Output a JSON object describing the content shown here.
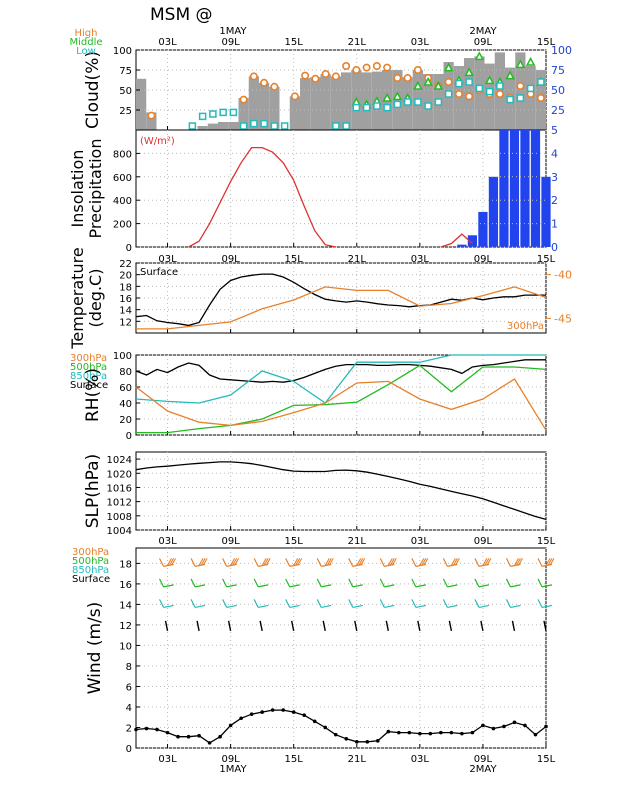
{
  "header": {
    "title": "MSM  @",
    "date_top_1": "1MAY",
    "date_top_2": "2MAY",
    "date_bottom_1": "1MAY",
    "date_bottom_2": "2MAY"
  },
  "time_ticks": [
    "03L",
    "09L",
    "15L",
    "21L",
    "03L",
    "09L",
    "15L"
  ],
  "time_tick_hours": [
    3,
    9,
    15,
    21,
    27,
    33,
    39
  ],
  "chart_data": [
    {
      "id": "cloud",
      "type": "bar",
      "ylabel": "Cloud(%)",
      "legend": [
        {
          "name": "High",
          "color": "#e8802a"
        },
        {
          "name": "Middle",
          "color": "#22bb22"
        },
        {
          "name": "Low",
          "color": "#22bbbb"
        }
      ],
      "ylim": [
        0,
        100
      ],
      "left_ticks": [
        25,
        50,
        75,
        100
      ],
      "right_ticks": [
        25,
        50,
        75,
        100
      ],
      "right_tick_labels": [
        "25",
        "50",
        "75",
        "100"
      ],
      "right_tick_color": "#2244cc",
      "bar_color": "#a0a0a0",
      "hours": [
        0,
        1,
        2,
        3,
        4,
        5,
        6,
        7,
        8,
        9,
        10,
        11,
        12,
        13,
        14,
        15,
        16,
        17,
        18,
        19,
        20,
        21,
        22,
        23,
        24,
        25,
        26,
        27,
        28,
        29,
        30,
        31,
        32,
        33,
        34,
        35,
        36,
        37,
        38,
        39
      ],
      "total": [
        64,
        22,
        0,
        0,
        0,
        0,
        5,
        8,
        10,
        10,
        40,
        67,
        59,
        54,
        0,
        42,
        65,
        66,
        70,
        67,
        72,
        75,
        72,
        73,
        75,
        75,
        66,
        75,
        70,
        70,
        85,
        80,
        90,
        92,
        83,
        97,
        78,
        97,
        80,
        75
      ],
      "series": [
        {
          "name": "High",
          "values": [
            null,
            18,
            null,
            null,
            null,
            null,
            null,
            null,
            null,
            null,
            38,
            67,
            59,
            54,
            null,
            42,
            68,
            64,
            70,
            67,
            80,
            75,
            78,
            80,
            78,
            65,
            65,
            75,
            65,
            55,
            60,
            45,
            42,
            50,
            45,
            45,
            40,
            55,
            45,
            40
          ]
        },
        {
          "name": "Middle",
          "values": [
            null,
            null,
            null,
            null,
            null,
            null,
            null,
            null,
            null,
            null,
            null,
            null,
            null,
            null,
            null,
            null,
            null,
            null,
            null,
            null,
            null,
            35,
            32,
            36,
            40,
            42,
            40,
            55,
            60,
            55,
            78,
            62,
            72,
            92,
            62,
            60,
            68,
            82,
            85,
            60
          ]
        },
        {
          "name": "Low",
          "values": [
            null,
            null,
            null,
            null,
            null,
            5,
            17,
            20,
            22,
            22,
            5,
            8,
            8,
            5,
            5,
            null,
            null,
            null,
            null,
            5,
            5,
            28,
            28,
            30,
            28,
            32,
            35,
            35,
            30,
            35,
            45,
            58,
            60,
            52,
            48,
            55,
            38,
            40,
            52,
            60
          ]
        }
      ]
    },
    {
      "id": "insolation",
      "type": "line",
      "ylabel": "Insolation\nPrecipitation",
      "unit_label": "(W/m²)",
      "unit_color": "#e03030",
      "line_color": "#e03030",
      "ylim": [
        0,
        1000
      ],
      "left_ticks": [
        0,
        200,
        400,
        600,
        800
      ],
      "right_ticks": [
        0,
        1,
        2,
        3,
        4,
        5
      ],
      "right_lim": [
        0,
        5
      ],
      "right_tick_color": "#2244cc",
      "bar_color": "#2244ee",
      "insolation": {
        "hours": [
          5,
          6,
          7,
          8,
          9,
          10,
          11,
          12,
          13,
          14,
          15,
          16,
          17,
          18,
          19
        ],
        "values": [
          0,
          50,
          200,
          380,
          560,
          720,
          850,
          850,
          810,
          720,
          570,
          350,
          140,
          20,
          0
        ]
      },
      "insolation_day2": {
        "hours": [
          29,
          30,
          31,
          32
        ],
        "values": [
          0,
          30,
          110,
          30
        ]
      },
      "precip": {
        "hours": [
          31,
          32,
          33,
          34,
          35,
          36,
          37,
          38,
          39
        ],
        "values": [
          0.1,
          0.5,
          1.5,
          3.0,
          5.0,
          5.0,
          5.0,
          5.0,
          3.0
        ]
      }
    },
    {
      "id": "temperature",
      "type": "line",
      "ylabel": "Temperature\n(deg.C)",
      "inner_label": "Surface",
      "ylim": [
        10,
        22
      ],
      "left_ticks": [
        12,
        14,
        16,
        18,
        20,
        22
      ],
      "right_ticks": [
        -40,
        -45
      ],
      "right_lim": [
        -46.67,
        -38.67
      ],
      "right_tick_color": "#e8802a",
      "series": [
        {
          "name": "Surface",
          "color": "#000000",
          "hours": [
            0,
            1,
            2,
            3,
            4,
            5,
            6,
            7,
            8,
            9,
            10,
            11,
            12,
            13,
            14,
            15,
            16,
            17,
            18,
            19,
            20,
            21,
            22,
            23,
            24,
            25,
            26,
            27,
            28,
            29,
            30,
            31,
            32,
            33,
            34,
            35,
            36,
            37,
            38,
            39
          ],
          "values": [
            12.8,
            13.0,
            12.1,
            11.8,
            11.6,
            11.3,
            11.8,
            14.8,
            17.5,
            19.0,
            19.6,
            19.9,
            20.1,
            20.1,
            19.6,
            18.7,
            17.6,
            16.6,
            15.8,
            15.5,
            15.3,
            15.5,
            15.3,
            15.0,
            14.8,
            14.7,
            14.5,
            14.7,
            14.8,
            15.3,
            15.8,
            15.6,
            16.0,
            15.7,
            16.0,
            16.2,
            16.2,
            16.5,
            16.5,
            16.5
          ]
        },
        {
          "name": "300hPa",
          "color": "#e8802a",
          "axis": "right",
          "hours": [
            0,
            3,
            6,
            9,
            12,
            15,
            18,
            21,
            24,
            27,
            30,
            33,
            36,
            39
          ],
          "values": [
            -46.2,
            -46.2,
            -45.8,
            -45.4,
            -43.9,
            -42.9,
            -41.4,
            -41.8,
            -41.8,
            -43.6,
            -43.3,
            -42.4,
            -41.4,
            -42.6
          ]
        }
      ],
      "right_label": "300hPa",
      "right_label_color": "#e8802a"
    },
    {
      "id": "rh",
      "type": "line",
      "ylabel": "RH(%)",
      "ylim": [
        0,
        100
      ],
      "left_ticks": [
        0,
        20,
        40,
        60,
        80,
        100
      ],
      "legend": [
        {
          "name": "300hPa",
          "color": "#e8802a"
        },
        {
          "name": "500hPa",
          "color": "#22bb22"
        },
        {
          "name": "850hPa",
          "color": "#22bbbb"
        },
        {
          "name": "Surface",
          "color": "#000000"
        }
      ],
      "series": [
        {
          "name": "Surface",
          "color": "#000000",
          "hours": [
            0,
            1,
            2,
            3,
            4,
            5,
            6,
            7,
            8,
            9,
            10,
            11,
            12,
            13,
            14,
            15,
            16,
            17,
            18,
            19,
            20,
            21,
            22,
            23,
            24,
            25,
            26,
            27,
            28,
            29,
            30,
            31,
            32,
            33,
            34,
            35,
            36,
            37,
            38,
            39
          ],
          "values": [
            80,
            75,
            82,
            78,
            85,
            90,
            87,
            75,
            70,
            69,
            68,
            67,
            66,
            67,
            66,
            68,
            72,
            77,
            82,
            86,
            88,
            88,
            88,
            87,
            87,
            88,
            88,
            87,
            86,
            84,
            82,
            77,
            85,
            87,
            88,
            90,
            92,
            94,
            94,
            94
          ]
        },
        {
          "name": "850hPa",
          "color": "#22bbbb",
          "hours": [
            0,
            3,
            6,
            9,
            12,
            15,
            18,
            21,
            24,
            27,
            30,
            33,
            36,
            39
          ],
          "values": [
            45,
            42,
            40,
            50,
            80,
            67,
            40,
            91,
            91,
            91,
            100,
            100,
            100,
            100
          ]
        },
        {
          "name": "500hPa",
          "color": "#22bb22",
          "hours": [
            0,
            3,
            6,
            9,
            12,
            15,
            18,
            21,
            24,
            27,
            30,
            33,
            36,
            39
          ],
          "values": [
            3,
            3,
            8,
            12,
            20,
            37,
            38,
            41,
            63,
            87,
            54,
            85,
            85,
            82
          ]
        },
        {
          "name": "300hPa",
          "color": "#e8802a",
          "hours": [
            0,
            3,
            6,
            9,
            12,
            15,
            18,
            21,
            24,
            27,
            30,
            33,
            36,
            39
          ],
          "values": [
            60,
            30,
            16,
            12,
            17,
            28,
            40,
            65,
            67,
            45,
            32,
            45,
            70,
            6
          ]
        }
      ]
    },
    {
      "id": "slp",
      "type": "line",
      "ylabel": "SLP(hPa)",
      "ylim": [
        1004,
        1026
      ],
      "left_ticks": [
        1004,
        1008,
        1012,
        1016,
        1020,
        1024
      ],
      "series": [
        {
          "name": "SLP",
          "color": "#000000",
          "hours": [
            0,
            1,
            2,
            3,
            4,
            5,
            6,
            7,
            8,
            9,
            10,
            11,
            12,
            13,
            14,
            15,
            16,
            17,
            18,
            19,
            20,
            21,
            22,
            23,
            24,
            25,
            26,
            27,
            28,
            29,
            30,
            31,
            32,
            33,
            34,
            35,
            36,
            37,
            38,
            39
          ],
          "values": [
            1021.0,
            1021.5,
            1021.8,
            1022.0,
            1022.3,
            1022.6,
            1022.8,
            1023.0,
            1023.2,
            1023.2,
            1023.0,
            1022.7,
            1022.2,
            1021.6,
            1021.0,
            1020.6,
            1020.5,
            1020.5,
            1020.5,
            1020.8,
            1020.9,
            1020.7,
            1020.3,
            1019.7,
            1019.1,
            1018.4,
            1017.7,
            1016.9,
            1016.3,
            1015.6,
            1014.9,
            1014.2,
            1013.6,
            1012.8,
            1011.8,
            1010.8,
            1009.8,
            1008.8,
            1007.8,
            1007.0
          ]
        }
      ]
    },
    {
      "id": "wind",
      "type": "line",
      "ylabel": "Wind  (m/s)",
      "ylim": [
        0,
        19.5
      ],
      "left_ticks": [
        0,
        2,
        4,
        6,
        8,
        10,
        12,
        14,
        16,
        18
      ],
      "legend": [
        {
          "name": "300hPa",
          "color": "#e8802a"
        },
        {
          "name": "500hPa",
          "color": "#22bb22"
        },
        {
          "name": "850hPa",
          "color": "#22bbbb"
        },
        {
          "name": "Surface",
          "color": "#000000"
        }
      ],
      "series": [
        {
          "name": "Surface",
          "color": "#000000",
          "hours": [
            0,
            1,
            2,
            3,
            4,
            5,
            6,
            7,
            8,
            9,
            10,
            11,
            12,
            13,
            14,
            15,
            16,
            17,
            18,
            19,
            20,
            21,
            22,
            23,
            24,
            25,
            26,
            27,
            28,
            29,
            30,
            31,
            32,
            33,
            34,
            35,
            36,
            37,
            38,
            39
          ],
          "values": [
            1.8,
            1.9,
            1.8,
            1.5,
            1.1,
            1.1,
            1.2,
            0.5,
            1.1,
            2.2,
            2.9,
            3.3,
            3.5,
            3.7,
            3.7,
            3.5,
            3.2,
            2.6,
            2.0,
            1.3,
            0.9,
            0.6,
            0.6,
            0.7,
            1.6,
            1.5,
            1.5,
            1.4,
            1.4,
            1.5,
            1.5,
            1.4,
            1.5,
            2.2,
            1.9,
            2.1,
            2.5,
            2.2,
            1.3,
            2.1
          ]
        }
      ],
      "barb_rows": [
        {
          "name": "300hPa",
          "color": "#e8802a",
          "y": 18,
          "hours": [
            3,
            6,
            9,
            12,
            15,
            18,
            21,
            24,
            27,
            30,
            33,
            36,
            39
          ]
        },
        {
          "name": "500hPa",
          "color": "#22bb22",
          "y": 16,
          "hours": [
            3,
            6,
            9,
            12,
            15,
            18,
            21,
            24,
            27,
            30,
            33,
            36,
            39
          ]
        },
        {
          "name": "850hPa",
          "color": "#22bbbb",
          "y": 14,
          "hours": [
            3,
            6,
            9,
            12,
            15,
            18,
            21,
            24,
            27,
            30,
            33,
            36,
            39
          ]
        },
        {
          "name": "Surface",
          "color": "#000000",
          "y": 12,
          "hours": [
            3,
            6,
            9,
            12,
            15,
            18,
            21,
            24,
            27,
            30,
            33,
            36,
            39
          ]
        }
      ]
    }
  ]
}
